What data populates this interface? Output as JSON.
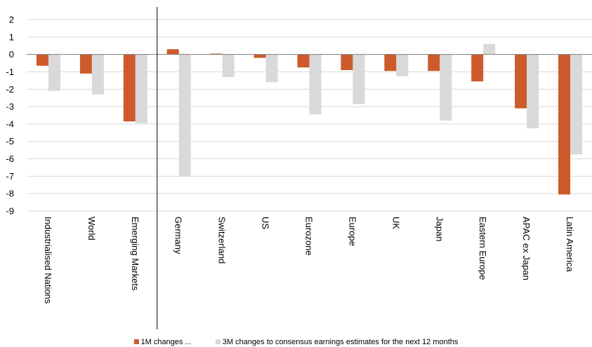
{
  "chart_data": {
    "type": "bar",
    "categories": [
      "Industrialised Nations",
      "World",
      "Emerging Markets",
      "Germany",
      "Switzerland",
      "US",
      "Eurozone",
      "Europe",
      "UK",
      "Japan",
      "Eastern Europe",
      "APAC ex Japan",
      "Latin America"
    ],
    "series": [
      {
        "name": "1M changes ...",
        "color": "#cc5a2b",
        "values": [
          -0.65,
          -1.1,
          -3.85,
          0.3,
          0.05,
          -0.2,
          -0.75,
          -0.9,
          -0.95,
          -0.95,
          -1.55,
          -3.1,
          -8.05
        ]
      },
      {
        "name": "3M changes to consensus earnings estimates for the next 12 months",
        "color": "#d9d9d9",
        "values": [
          -2.1,
          -2.3,
          -3.95,
          -7.0,
          -1.3,
          -1.6,
          -3.45,
          -2.85,
          -1.25,
          -3.8,
          0.6,
          -4.25,
          -5.75
        ]
      }
    ],
    "title": "",
    "xlabel": "",
    "ylabel": "",
    "ylim": [
      -9,
      2
    ],
    "yticks": [
      2,
      1,
      0,
      -1,
      -2,
      -3,
      -4,
      -5,
      -6,
      -7,
      -8,
      -9
    ],
    "grid": true,
    "legend_position": "bottom",
    "separator_after_category": "Emerging Markets"
  }
}
